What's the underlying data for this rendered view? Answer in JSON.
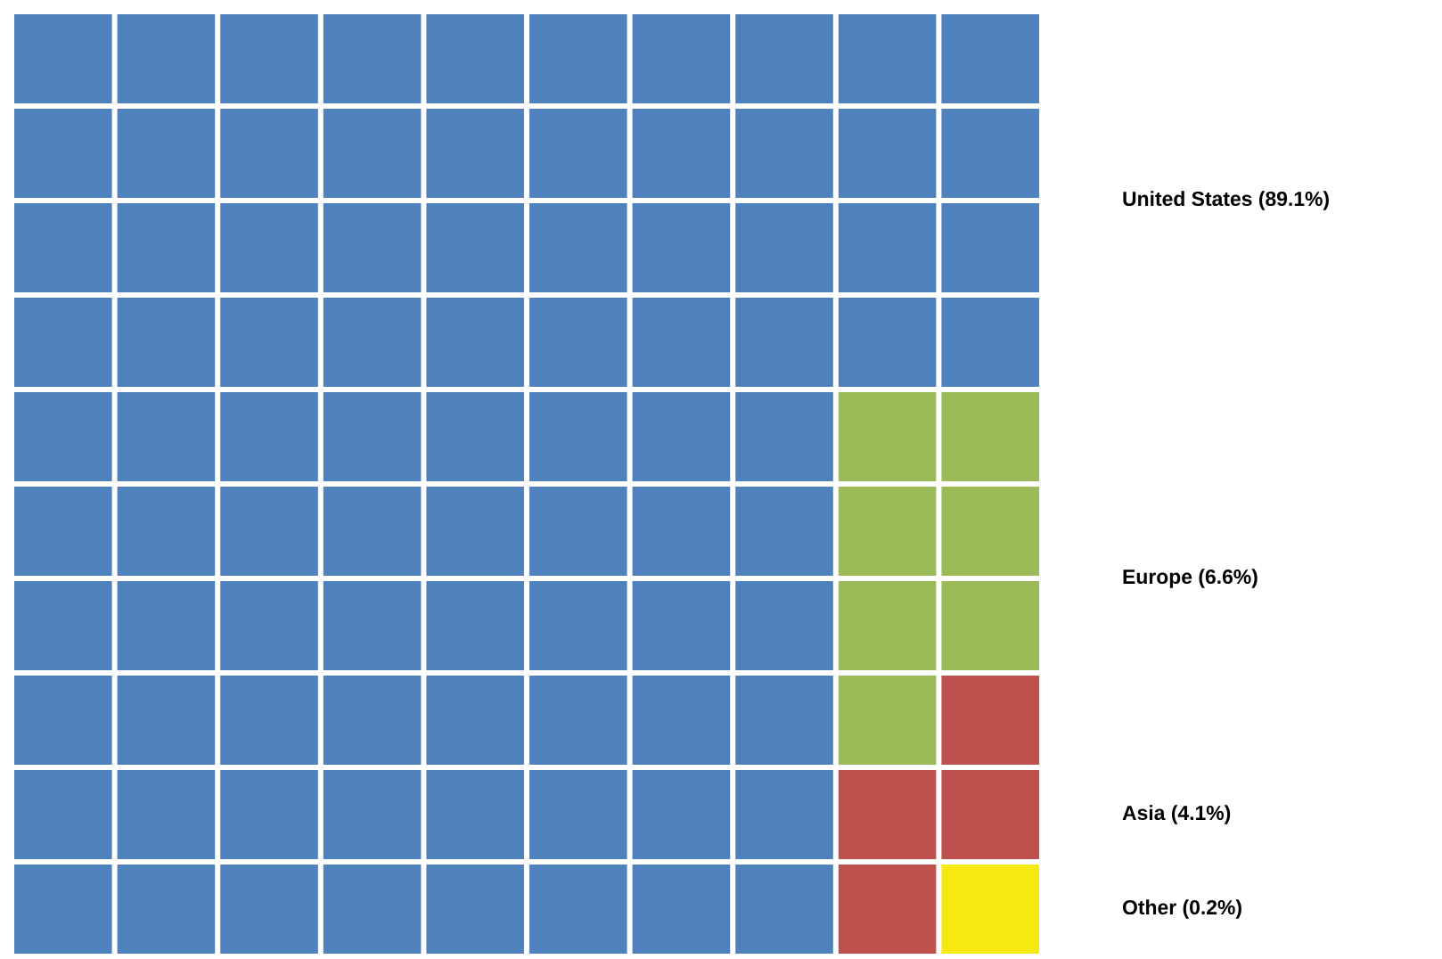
{
  "chart_data": {
    "type": "other",
    "categories": [
      "United States",
      "Europe",
      "Asia",
      "Other"
    ],
    "values": [
      89.1,
      6.6,
      4.1,
      0.2
    ],
    "value_labels": [
      "(89.1%)",
      "(6.6%)",
      "(4.1%)",
      "(0.2%)"
    ],
    "colors": [
      "#4f81bd",
      "#9bbb59",
      "#c0504d",
      "#f5e90f"
    ]
  }
}
